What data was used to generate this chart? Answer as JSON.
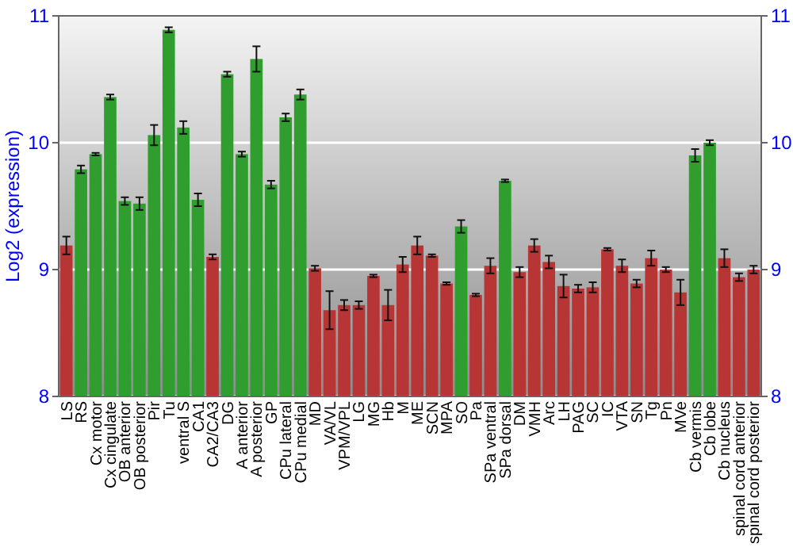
{
  "chart_data": {
    "type": "bar",
    "ylabel": "Log2 (expression)",
    "categories": [
      "LS",
      "RS",
      "Cx motor",
      "Cx cingulate",
      "OB anterior",
      "OB posterior",
      "Pir",
      "Tu",
      "ventral S",
      "CA1",
      "CA2/CA3",
      "DG",
      "A anterior",
      "A posterior",
      "GP",
      "CPu lateral",
      "CPu medial",
      "MD",
      "VA/VL",
      "VPM/VPL",
      "LG",
      "MG",
      "Hb",
      "M",
      "ME",
      "SCN",
      "MPA",
      "SO",
      "Pa",
      "SPa ventral",
      "SPa dorsal",
      "DM",
      "VMH",
      "Arc",
      "LH",
      "PAG",
      "SC",
      "IC",
      "VTA",
      "SN",
      "Tg",
      "Pn",
      "MVe",
      "Cb vermis",
      "Cb lobe",
      "Cb nucleus",
      "spinal cord anterior",
      "spinal cord posterior"
    ],
    "values": [
      9.19,
      9.79,
      9.91,
      10.36,
      9.54,
      9.52,
      10.06,
      10.89,
      10.12,
      9.55,
      9.1,
      10.54,
      9.91,
      10.66,
      9.67,
      10.2,
      10.38,
      9.01,
      8.68,
      8.72,
      8.72,
      8.95,
      8.72,
      9.04,
      9.19,
      9.11,
      8.89,
      9.34,
      8.8,
      9.03,
      9.7,
      8.98,
      9.19,
      9.06,
      8.87,
      8.85,
      8.86,
      9.16,
      9.03,
      8.89,
      9.09,
      9.0,
      8.82,
      9.9,
      10.0,
      9.09,
      8.94,
      9.0
    ],
    "errors": [
      0.07,
      0.03,
      0.01,
      0.02,
      0.03,
      0.05,
      0.08,
      0.02,
      0.05,
      0.05,
      0.02,
      0.02,
      0.02,
      0.1,
      0.03,
      0.03,
      0.04,
      0.02,
      0.15,
      0.04,
      0.03,
      0.01,
      0.12,
      0.06,
      0.07,
      0.01,
      0.01,
      0.05,
      0.01,
      0.06,
      0.01,
      0.04,
      0.05,
      0.05,
      0.09,
      0.03,
      0.04,
      0.01,
      0.05,
      0.03,
      0.06,
      0.02,
      0.1,
      0.05,
      0.02,
      0.07,
      0.03,
      0.03
    ],
    "colors": [
      "#b83535",
      "#2f9e2f",
      "#2f9e2f",
      "#2f9e2f",
      "#2f9e2f",
      "#2f9e2f",
      "#2f9e2f",
      "#2f9e2f",
      "#2f9e2f",
      "#2f9e2f",
      "#b83535",
      "#2f9e2f",
      "#2f9e2f",
      "#2f9e2f",
      "#2f9e2f",
      "#2f9e2f",
      "#2f9e2f",
      "#b83535",
      "#b83535",
      "#b83535",
      "#b83535",
      "#b83535",
      "#b83535",
      "#b83535",
      "#b83535",
      "#b83535",
      "#b83535",
      "#2f9e2f",
      "#b83535",
      "#b83535",
      "#2f9e2f",
      "#b83535",
      "#b83535",
      "#b83535",
      "#b83535",
      "#b83535",
      "#b83535",
      "#b83535",
      "#b83535",
      "#b83535",
      "#b83535",
      "#b83535",
      "#b83535",
      "#2f9e2f",
      "#2f9e2f",
      "#b83535",
      "#b83535",
      "#b83535"
    ],
    "ylim": [
      8,
      11
    ],
    "yticks": [
      8,
      9,
      10,
      11
    ],
    "y2lim": [
      8,
      11
    ],
    "y2ticks": [
      8,
      9,
      10,
      11
    ],
    "grid": "y"
  }
}
